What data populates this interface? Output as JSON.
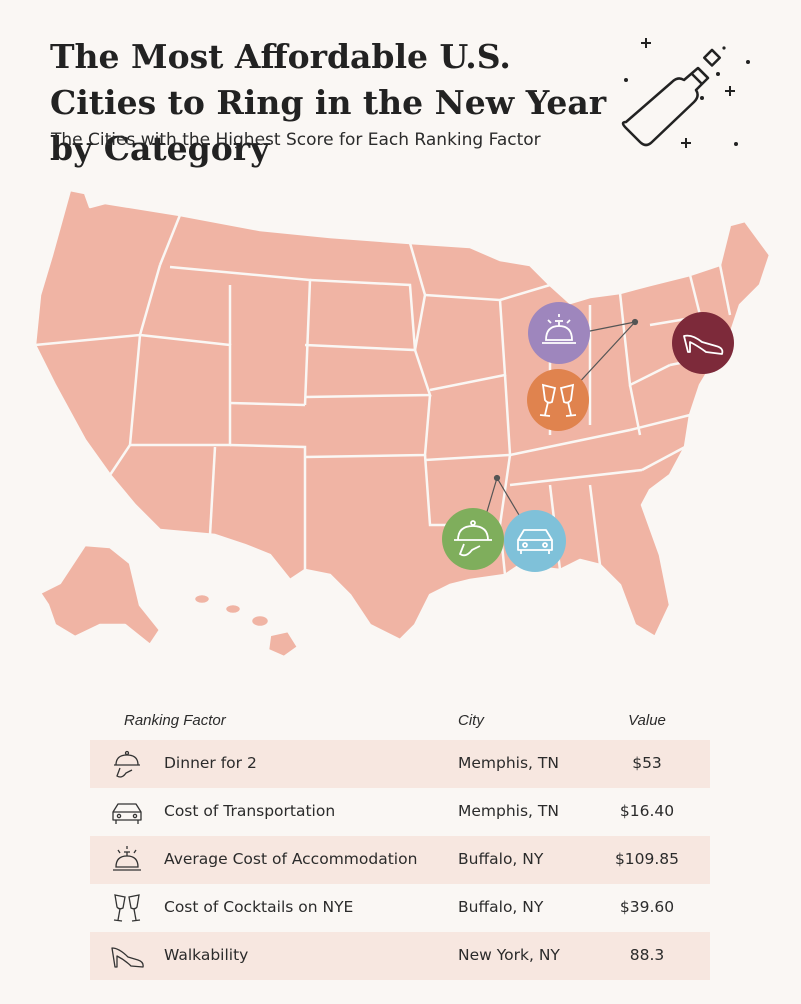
{
  "header": {
    "title": "The Most Affordable U.S. Cities to Ring in the New Year by Category",
    "subtitle": "The Cities with the Highest Score for Each Ranking Factor"
  },
  "colors": {
    "background": "#faf7f4",
    "map_fill": "#f0b4a4",
    "row_shade": "#f7e7e0",
    "badge_dinner": "#7fae5c",
    "badge_transport": "#7fc1d9",
    "badge_accommodation": "#9e86bd",
    "badge_cocktails": "#e0834e",
    "badge_walkability": "#7d2a3a"
  },
  "map_badges": [
    {
      "icon": "dinner-cloche-icon",
      "city": "Memphis, TN"
    },
    {
      "icon": "car-icon",
      "city": "Memphis, TN"
    },
    {
      "icon": "service-bell-icon",
      "city": "Buffalo, NY"
    },
    {
      "icon": "champagne-glasses-icon",
      "city": "Buffalo, NY"
    },
    {
      "icon": "high-heel-icon",
      "city": "New York, NY"
    }
  ],
  "table": {
    "headers": {
      "factor": "Ranking Factor",
      "city": "City",
      "value": "Value"
    },
    "rows": [
      {
        "icon": "dinner-cloche-icon",
        "factor": "Dinner for 2",
        "city": "Memphis, TN",
        "value": "$53"
      },
      {
        "icon": "car-icon",
        "factor": "Cost of Transportation",
        "city": "Memphis, TN",
        "value": "$16.40"
      },
      {
        "icon": "service-bell-icon",
        "factor": "Average Cost of Accommodation",
        "city": "Buffalo, NY",
        "value": "$109.85"
      },
      {
        "icon": "champagne-glasses-icon",
        "factor": "Cost of Cocktails on NYE",
        "city": "Buffalo, NY",
        "value": "$39.60"
      },
      {
        "icon": "high-heel-icon",
        "factor": "Walkability",
        "city": "New York, NY",
        "value": "88.3"
      }
    ]
  }
}
